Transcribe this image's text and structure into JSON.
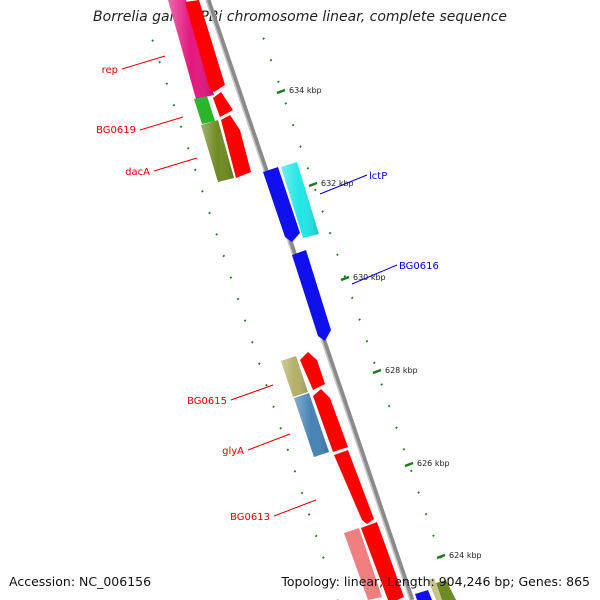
{
  "title": "Borrelia garinii PBi chromosome linear, complete sequence",
  "footer": {
    "accession": "Accession: NC_006156",
    "topology": "Topology: linear;",
    "length": "Length: 904,246 bp;",
    "genes": "Genes: 865"
  },
  "ticks": [
    {
      "label": "634 kbp"
    },
    {
      "label": "632 kbp"
    },
    {
      "label": "630 kbp"
    },
    {
      "label": "628 kbp"
    },
    {
      "label": "626 kbp"
    },
    {
      "label": "624 kbp"
    }
  ],
  "gene_labels": [
    {
      "text": "rep",
      "color": "#dd0000"
    },
    {
      "text": "BG0619",
      "color": "#dd0000"
    },
    {
      "text": "dacA",
      "color": "#dd0000"
    },
    {
      "text": "lctP",
      "color": "#0000cc"
    },
    {
      "text": "BG0616",
      "color": "#0000cc"
    },
    {
      "text": "BG0615",
      "color": "#dd0000"
    },
    {
      "text": "glyA",
      "color": "#dd0000"
    },
    {
      "text": "BG0613",
      "color": "#dd0000"
    }
  ],
  "colors": {
    "backbone": "#8a8a8a",
    "tick": "#1a7a1a",
    "forward_strand": "#ff0000",
    "reverse_strand": "#0000ee"
  }
}
